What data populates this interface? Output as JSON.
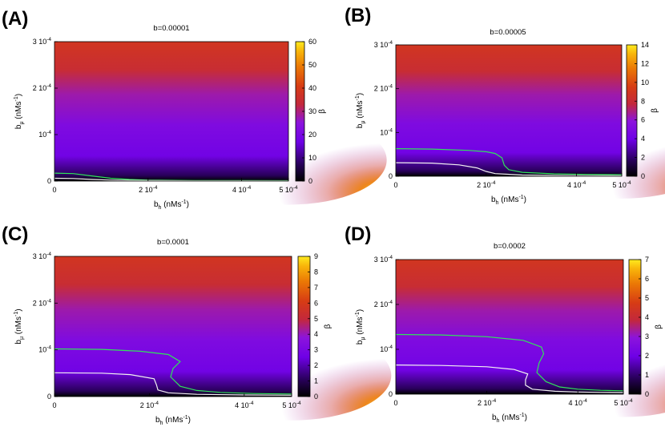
{
  "figure": {
    "cb_label": "β",
    "curve_colors": {
      "green": "#31e35a",
      "white": "#f2f2f2"
    }
  },
  "chart_data": [
    {
      "type": "heatmap",
      "panel_label": "(A)",
      "title": "b=0.00001",
      "xlabel": "b",
      "xlabel_sub": "h",
      "xlabel_unit": " (nMs",
      "xlabel_unit_sup": "-1",
      "xlabel_end": ")",
      "ylabel": "b",
      "ylabel_sub": "μ",
      "ylabel_unit": " (nMs",
      "ylabel_unit_sup": "-1",
      "ylabel_end": ")",
      "xlim": [
        0,
        0.0005
      ],
      "ylim": [
        0,
        0.0003
      ],
      "x_ticks": [
        {
          "v": 0,
          "label": "0"
        },
        {
          "v": 0.0002,
          "label": "2 10",
          "sup": "-4"
        },
        {
          "v": 0.0004,
          "label": "4 10",
          "sup": "-4"
        },
        {
          "v": 0.0005,
          "label": "5 10",
          "sup": "-4"
        }
      ],
      "y_ticks": [
        {
          "v": 0,
          "label": "0"
        },
        {
          "v": 0.0001,
          "label": "10",
          "sup": "-4"
        },
        {
          "v": 0.0002,
          "label": "2 10",
          "sup": "-4"
        },
        {
          "v": 0.0003,
          "label": "3 10",
          "sup": "-4"
        }
      ],
      "colorbar": {
        "range": [
          0,
          60
        ],
        "ticks": [
          0,
          10,
          20,
          30,
          40,
          50,
          60
        ]
      },
      "contours": [
        {
          "color": "green",
          "points": [
            [
              0,
              1.7e-05
            ],
            [
              4e-05,
              1.6e-05
            ],
            [
              8e-05,
              1.1e-05
            ],
            [
              0.00012,
              6e-06
            ],
            [
              0.00016,
              3.5e-06
            ],
            [
              0.0002,
              2e-06
            ],
            [
              0.0003,
              1.2e-06
            ],
            [
              0.0004,
              1e-06
            ],
            [
              0.0005,
              8e-07
            ]
          ]
        },
        {
          "color": "white",
          "points": [
            [
              0,
              6e-06
            ],
            [
              4e-05,
              5.5e-06
            ],
            [
              8e-05,
              3.5e-06
            ],
            [
              0.00012,
              2e-06
            ],
            [
              0.0002,
              1e-06
            ],
            [
              0.0003,
              6e-07
            ],
            [
              0.0004,
              5e-07
            ],
            [
              0.0005,
              4e-07
            ]
          ]
        }
      ]
    },
    {
      "type": "heatmap",
      "panel_label": "(B)",
      "title": "b=0.00005",
      "xlabel": "b",
      "xlabel_sub": "h",
      "xlabel_unit": " (nMs",
      "xlabel_unit_sup": "-1",
      "xlabel_end": ")",
      "ylabel": "b",
      "ylabel_sub": "μ",
      "ylabel_unit": " (nMs",
      "ylabel_unit_sup": "-1",
      "ylabel_end": ")",
      "xlim": [
        0,
        0.0005
      ],
      "ylim": [
        0,
        0.0003
      ],
      "x_ticks": [
        {
          "v": 0,
          "label": "0"
        },
        {
          "v": 0.0002,
          "label": "2 10",
          "sup": "-4"
        },
        {
          "v": 0.0004,
          "label": "4 10",
          "sup": "-4"
        },
        {
          "v": 0.0005,
          "label": "5 10",
          "sup": "-4"
        }
      ],
      "y_ticks": [
        {
          "v": 0,
          "label": "0"
        },
        {
          "v": 0.0001,
          "label": "10",
          "sup": "-4"
        },
        {
          "v": 0.0002,
          "label": "2 10",
          "sup": "-4"
        },
        {
          "v": 0.0003,
          "label": "3 10",
          "sup": "-4"
        }
      ],
      "colorbar": {
        "range": [
          0,
          14
        ],
        "ticks": [
          0,
          2,
          4,
          6,
          8,
          10,
          12,
          14
        ]
      },
      "contours": [
        {
          "color": "green",
          "points": [
            [
              0,
              6.3e-05
            ],
            [
              8e-05,
              6.2e-05
            ],
            [
              0.00016,
              5.9e-05
            ],
            [
              0.0002,
              5.6e-05
            ],
            [
              0.00022,
              5.2e-05
            ],
            [
              0.000235,
              4.2e-05
            ],
            [
              0.00024,
              2.5e-05
            ],
            [
              0.00025,
              1.5e-05
            ],
            [
              0.00028,
              9e-06
            ],
            [
              0.00035,
              5.5e-06
            ],
            [
              0.00042,
              4.2e-06
            ],
            [
              0.0005,
              3.5e-06
            ]
          ]
        },
        {
          "color": "white",
          "points": [
            [
              0,
              3.1e-05
            ],
            [
              8e-05,
              3e-05
            ],
            [
              0.00014,
              2.6e-05
            ],
            [
              0.00018,
              1.9e-05
            ],
            [
              0.0002,
              1.1e-05
            ],
            [
              0.00022,
              6e-06
            ],
            [
              0.00028,
              2.8e-06
            ],
            [
              0.00035,
              1.8e-06
            ],
            [
              0.00042,
              1.4e-06
            ],
            [
              0.0005,
              1.2e-06
            ]
          ]
        }
      ]
    },
    {
      "type": "heatmap",
      "panel_label": "(C)",
      "title": "b=0.0001",
      "xlabel": "b",
      "xlabel_sub": "h",
      "xlabel_unit": " (nMs",
      "xlabel_unit_sup": "-1",
      "xlabel_end": ")",
      "ylabel": "b",
      "ylabel_sub": "μ",
      "ylabel_unit": " (nMs",
      "ylabel_unit_sup": "-1",
      "ylabel_end": ")",
      "xlim": [
        0,
        0.0005
      ],
      "ylim": [
        0,
        0.0003
      ],
      "x_ticks": [
        {
          "v": 0,
          "label": "0"
        },
        {
          "v": 0.0002,
          "label": "2 10",
          "sup": "-4"
        },
        {
          "v": 0.0004,
          "label": "4 10",
          "sup": "-4"
        },
        {
          "v": 0.0005,
          "label": "5 10",
          "sup": "-4"
        }
      ],
      "y_ticks": [
        {
          "v": 0,
          "label": "0"
        },
        {
          "v": 0.0001,
          "label": "10",
          "sup": "-4"
        },
        {
          "v": 0.0002,
          "label": "2 10",
          "sup": "-4"
        },
        {
          "v": 0.0003,
          "label": "3 10",
          "sup": "-4"
        }
      ],
      "colorbar": {
        "range": [
          0,
          9
        ],
        "ticks": [
          0,
          1,
          2,
          3,
          4,
          5,
          6,
          7,
          8,
          9
        ]
      },
      "contours": [
        {
          "color": "green",
          "points": [
            [
              0,
              0.000102
            ],
            [
              0.0001,
              0.000101
            ],
            [
              0.00018,
              9.7e-05
            ],
            [
              0.00024,
              9e-05
            ],
            [
              0.000265,
              7.5e-05
            ],
            [
              0.00025,
              6e-05
            ],
            [
              0.000245,
              4.2e-05
            ],
            [
              0.000265,
              2.2e-05
            ],
            [
              0.0003,
              1.3e-05
            ],
            [
              0.00035,
              9e-06
            ],
            [
              0.00042,
              6.5e-06
            ],
            [
              0.0005,
              5.5e-06
            ]
          ]
        },
        {
          "color": "white",
          "points": [
            [
              0,
              5.1e-05
            ],
            [
              0.0001,
              5e-05
            ],
            [
              0.00016,
              4.7e-05
            ],
            [
              0.00021,
              3.8e-05
            ],
            [
              0.000215,
              2.5e-05
            ],
            [
              0.000218,
              1.4e-05
            ],
            [
              0.00024,
              8e-06
            ],
            [
              0.0003,
              4.8e-06
            ],
            [
              0.0004,
              3.4e-06
            ],
            [
              0.0005,
              3e-06
            ]
          ]
        }
      ]
    },
    {
      "type": "heatmap",
      "panel_label": "(D)",
      "title": "b=0.0002",
      "xlabel": "b",
      "xlabel_sub": "h",
      "xlabel_unit": " (nMs",
      "xlabel_unit_sup": "-1",
      "xlabel_end": ")",
      "ylabel": "b",
      "ylabel_sub": "μ",
      "ylabel_unit": " (nMs",
      "ylabel_unit_sup": "-1",
      "ylabel_end": ")",
      "xlim": [
        0,
        0.0005
      ],
      "ylim": [
        0,
        0.0003
      ],
      "x_ticks": [
        {
          "v": 0,
          "label": "0"
        },
        {
          "v": 0.0002,
          "label": "2 10",
          "sup": "-4"
        },
        {
          "v": 0.0004,
          "label": "4 10",
          "sup": "-4"
        },
        {
          "v": 0.0005,
          "label": "5 10",
          "sup": "-4"
        }
      ],
      "y_ticks": [
        {
          "v": 0,
          "label": "0"
        },
        {
          "v": 0.0001,
          "label": "10",
          "sup": "-4"
        },
        {
          "v": 0.0002,
          "label": "2 10",
          "sup": "-4"
        },
        {
          "v": 0.0003,
          "label": "3 10",
          "sup": "-4"
        }
      ],
      "colorbar": {
        "range": [
          0,
          7
        ],
        "ticks": [
          0,
          1,
          2,
          3,
          4,
          5,
          6,
          7
        ]
      },
      "contours": [
        {
          "color": "green",
          "points": [
            [
              0,
              0.000133
            ],
            [
              0.0001,
              0.000132
            ],
            [
              0.0002,
              0.000128
            ],
            [
              0.00028,
              0.00012
            ],
            [
              0.00032,
              0.000105
            ],
            [
              0.000325,
              9e-05
            ],
            [
              0.000315,
              7e-05
            ],
            [
              0.00031,
              4.8e-05
            ],
            [
              0.00033,
              2.8e-05
            ],
            [
              0.00036,
              1.6e-05
            ],
            [
              0.0004,
              1.1e-05
            ],
            [
              0.00045,
              8.5e-06
            ],
            [
              0.0005,
              7.5e-06
            ]
          ]
        },
        {
          "color": "white",
          "points": [
            [
              0,
              6.5e-05
            ],
            [
              0.0001,
              6.4e-05
            ],
            [
              0.0002,
              6.1e-05
            ],
            [
              0.00026,
              5.5e-05
            ],
            [
              0.00029,
              4.5e-05
            ],
            [
              0.000285,
              3.2e-05
            ],
            [
              0.000285,
              2e-05
            ],
            [
              0.0003,
              1.1e-05
            ],
            [
              0.00035,
              6.5e-06
            ],
            [
              0.0004,
              4.8e-06
            ],
            [
              0.00045,
              4e-06
            ],
            [
              0.0005,
              3.5e-06
            ]
          ]
        }
      ]
    }
  ]
}
